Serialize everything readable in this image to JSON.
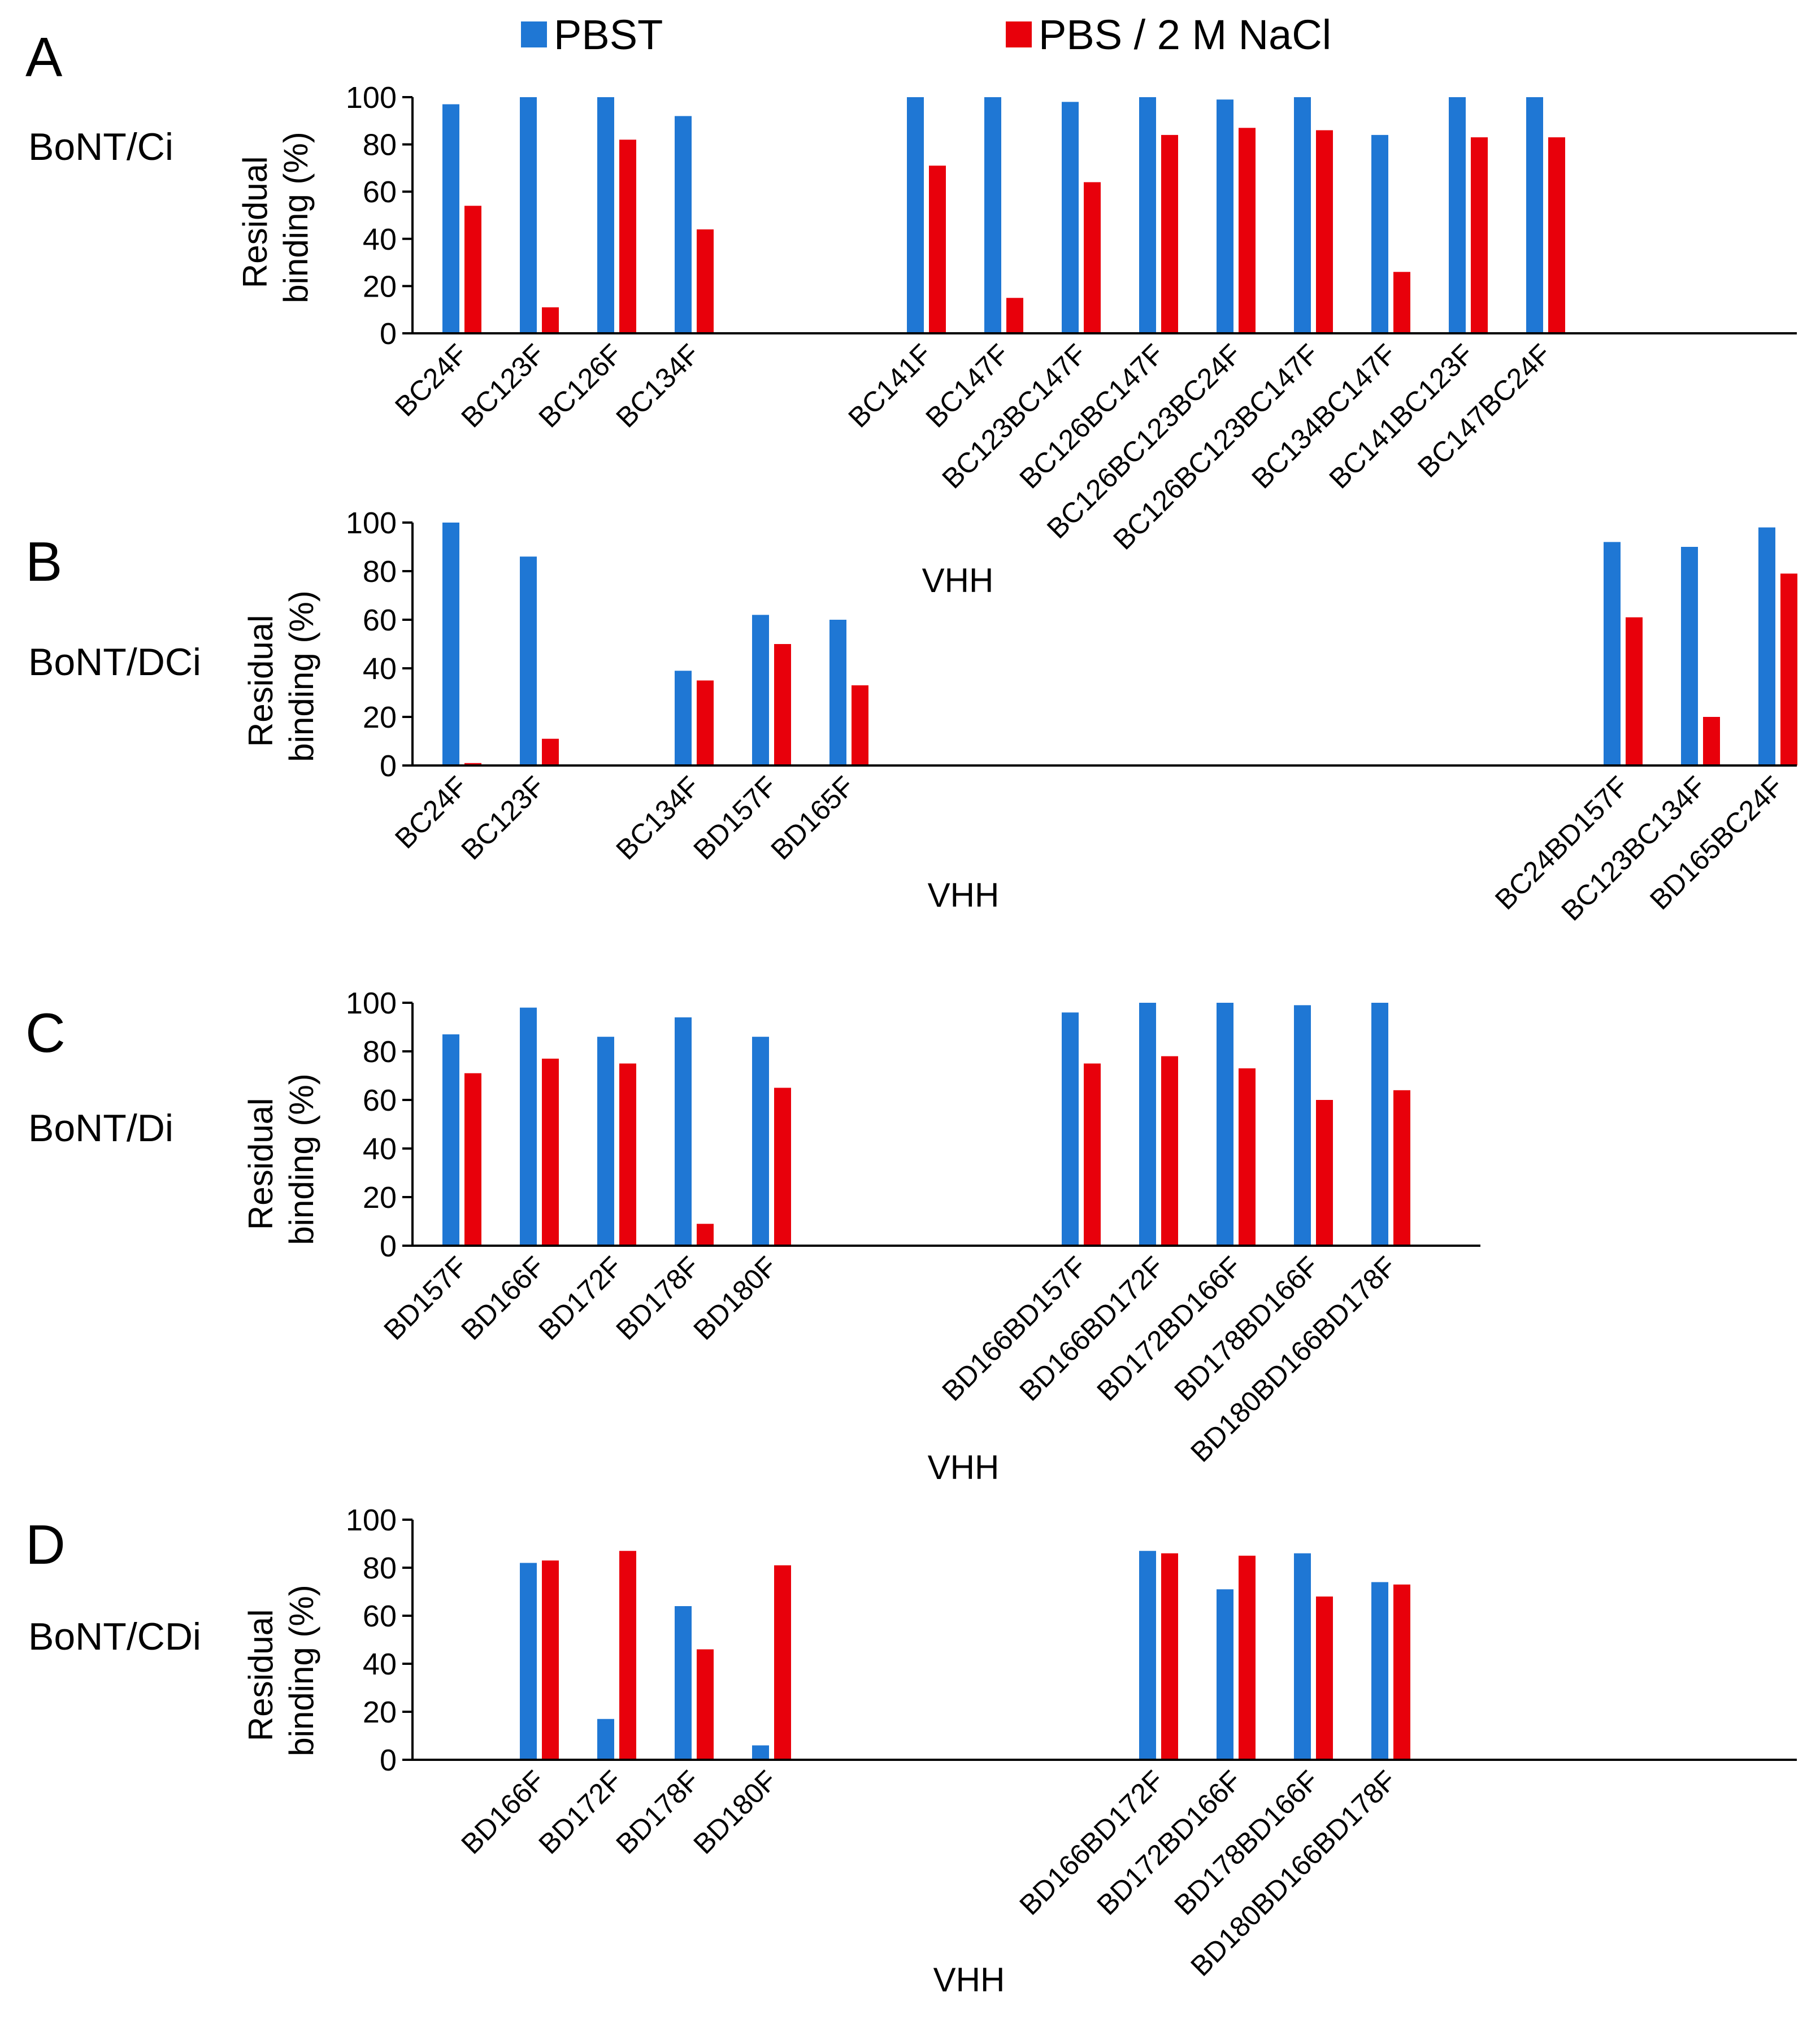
{
  "legend": [
    {
      "name": "PBST",
      "color": "#1f77d4"
    },
    {
      "name": "PBS / 2 M NaCl",
      "color": "#e8000b"
    }
  ],
  "chart_data": [
    {
      "type": "bar",
      "panel": "A",
      "toxin": "BoNT/Ci",
      "ylabel_line1": "Residual",
      "ylabel_line2": "binding (%)",
      "xlabel": "VHH",
      "ylim": [
        0,
        100
      ],
      "yticks": [
        "0",
        "20",
        "40",
        "60",
        "80",
        "100"
      ],
      "slots": 19,
      "categories": [
        "BC24F",
        "BC123F",
        "BC126F",
        "BC134F",
        "",
        "",
        "BC141F",
        "BC147F",
        "BC123BC147F",
        "BC126BC147F",
        "BC126BC123BC24F",
        "BC126BC123BC147F",
        "BC134BC147F",
        "BC141BC123F",
        "BC147BC24F",
        "",
        "",
        "",
        ""
      ],
      "series": [
        {
          "name": "PBST",
          "values": [
            97,
            100,
            100,
            92,
            null,
            null,
            100,
            100,
            98,
            100,
            99,
            100,
            84,
            100,
            100,
            null,
            null,
            null,
            null
          ]
        },
        {
          "name": "PBS / 2 M NaCl",
          "values": [
            54,
            11,
            82,
            44,
            null,
            null,
            71,
            15,
            64,
            84,
            87,
            86,
            26,
            83,
            83,
            null,
            null,
            null,
            null
          ]
        }
      ]
    },
    {
      "type": "bar",
      "panel": "B",
      "toxin": "BoNT/DCi",
      "ylabel_line1": "Residual",
      "ylabel_line2": "binding (%)",
      "xlabel": "VHH",
      "ylim": [
        0,
        100
      ],
      "yticks": [
        "0",
        "20",
        "40",
        "60",
        "80",
        "100"
      ],
      "slots": 18,
      "categories": [
        "BC24F",
        "BC123F",
        "",
        "BC134F",
        "BD157F",
        "BD165F",
        "",
        "",
        "",
        "",
        "",
        "",
        "",
        "",
        "",
        "BC24BD157F",
        "BC123BC134F",
        "BD165BC24F"
      ],
      "series": [
        {
          "name": "PBST",
          "values": [
            100,
            86,
            null,
            39,
            62,
            60,
            null,
            null,
            null,
            null,
            null,
            null,
            null,
            null,
            null,
            92,
            90,
            98
          ]
        },
        {
          "name": "PBS / 2 M NaCl",
          "values": [
            1,
            11,
            null,
            35,
            50,
            33,
            null,
            null,
            null,
            null,
            null,
            null,
            null,
            null,
            null,
            61,
            20,
            79
          ]
        }
      ]
    },
    {
      "type": "bar",
      "panel": "C",
      "toxin": "BoNT/Di",
      "ylabel_line1": "Residual",
      "ylabel_line2": "binding (%)",
      "xlabel": "VHH",
      "ylim": [
        0,
        100
      ],
      "yticks": [
        "0",
        "20",
        "40",
        "60",
        "80",
        "100"
      ],
      "slots": 18,
      "categories": [
        "BD157F",
        "BD166F",
        "BD172F",
        "BD178F",
        "BD180F",
        "",
        "",
        "",
        "BD166BD157F",
        "BD166BD172F",
        "BD172BD166F",
        "BD178BD166F",
        "BD180BD166BD178F",
        "",
        "",
        "",
        "",
        ""
      ],
      "series": [
        {
          "name": "PBST",
          "values": [
            87,
            98,
            86,
            94,
            86,
            null,
            null,
            null,
            96,
            100,
            100,
            99,
            100,
            null,
            null,
            null,
            null,
            null
          ]
        },
        {
          "name": "PBS / 2 M NaCl",
          "values": [
            71,
            77,
            75,
            9,
            65,
            null,
            null,
            null,
            75,
            78,
            73,
            60,
            64,
            null,
            null,
            null,
            null,
            null
          ]
        }
      ]
    },
    {
      "type": "bar",
      "panel": "D",
      "toxin": "BoNT/CDi",
      "ylabel_line1": "Residual",
      "ylabel_line2": "binding (%)",
      "xlabel": "VHH",
      "ylim": [
        0,
        100
      ],
      "yticks": [
        "0",
        "20",
        "40",
        "60",
        "80",
        "100"
      ],
      "slots": 18,
      "categories": [
        "",
        "BD166F",
        "BD172F",
        "BD178F",
        "BD180F",
        "",
        "",
        "",
        "",
        "BD166BD172F",
        "BD172BD166F",
        "BD178BD166F",
        "BD180BD166BD178F",
        "",
        "",
        "",
        "",
        ""
      ],
      "series": [
        {
          "name": "PBST",
          "values": [
            null,
            82,
            17,
            64,
            6,
            null,
            null,
            null,
            null,
            87,
            71,
            86,
            74,
            null,
            null,
            null,
            null,
            null
          ]
        },
        {
          "name": "PBS / 2 M NaCl",
          "values": [
            null,
            83,
            87,
            46,
            81,
            null,
            null,
            null,
            null,
            86,
            85,
            68,
            73,
            null,
            null,
            null,
            null,
            null
          ]
        }
      ]
    }
  ]
}
